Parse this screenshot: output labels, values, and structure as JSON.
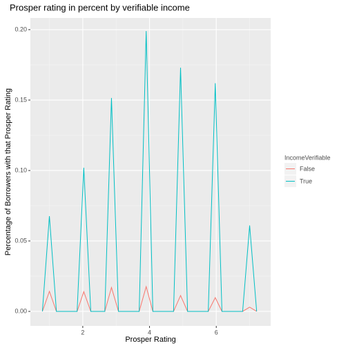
{
  "chart_data": {
    "type": "line",
    "title": "Prosper rating in percent by verifiable income",
    "x_label": "Prosper Rating",
    "y_label": "Percentage of Borrowers with that Prosper Rating",
    "legend_title": "IncomeVerifiable",
    "legend_position": "right",
    "grid": true,
    "x": [
      0.79,
      1.0,
      1.21,
      1.41,
      1.62,
      1.83,
      2.03,
      2.24,
      2.45,
      2.66,
      2.86,
      3.07,
      3.28,
      3.48,
      3.69,
      3.9,
      4.1,
      4.31,
      4.52,
      4.72,
      4.93,
      5.14,
      5.34,
      5.55,
      5.76,
      5.97,
      6.17,
      6.38,
      6.59,
      6.79,
      7.0,
      7.21
    ],
    "series": [
      {
        "name": "False",
        "color": "#F8766D",
        "values": [
          0,
          0.0142,
          0,
          0,
          0,
          0,
          0.014,
          0,
          0,
          0,
          0.017,
          0,
          0,
          0,
          0,
          0.0176,
          0,
          0,
          0,
          0,
          0.0113,
          0,
          0,
          0,
          0,
          0.0098,
          0,
          0,
          0,
          0,
          0.003,
          0
        ]
      },
      {
        "name": "True",
        "color": "#00BFC4",
        "values": [
          0,
          0.0676,
          0,
          0,
          0,
          0,
          0.102,
          0,
          0,
          0,
          0.1515,
          0,
          0,
          0,
          0,
          0.199,
          0,
          0,
          0,
          0,
          0.173,
          0,
          0,
          0,
          0,
          0.162,
          0,
          0,
          0,
          0,
          0.061,
          0
        ]
      }
    ],
    "xlim": [
      0.43,
      7.63
    ],
    "ylim": [
      -0.0103,
      0.2083
    ],
    "xticks": [
      2,
      4,
      6
    ],
    "minor_xticks": [
      1,
      3,
      5,
      7
    ],
    "yticks": [
      {
        "value": 0,
        "label": "0.00"
      },
      {
        "value": 0.05,
        "label": "0.05"
      },
      {
        "value": 0.1,
        "label": "0.10"
      },
      {
        "value": 0.15,
        "label": "0.15"
      },
      {
        "value": 0.2,
        "label": "0.20"
      }
    ],
    "minor_yticks": [
      0.025,
      0.075,
      0.125,
      0.175
    ]
  }
}
